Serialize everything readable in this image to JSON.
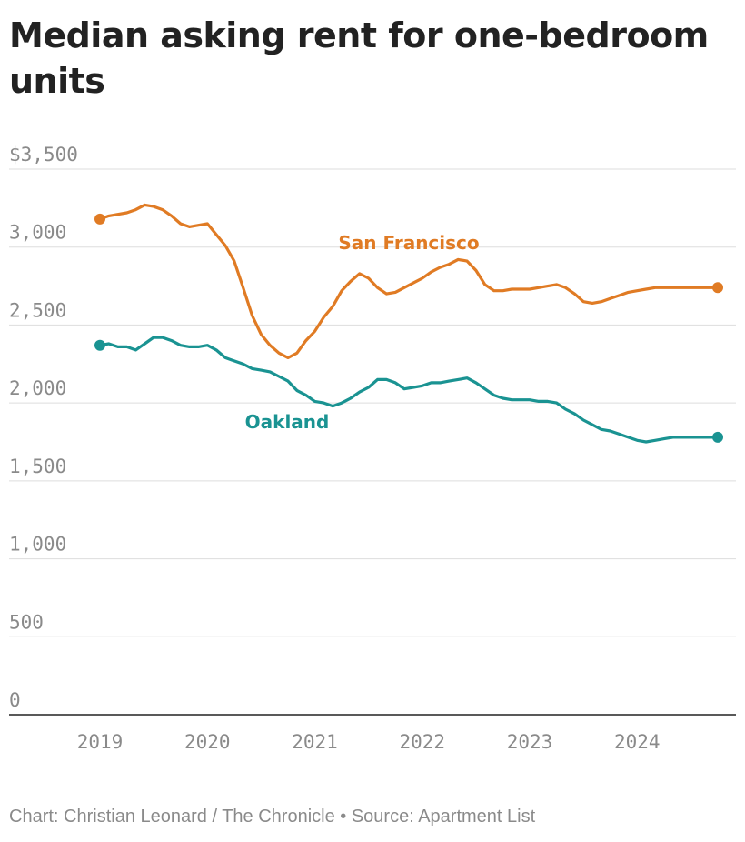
{
  "chart_data": {
    "type": "line",
    "title": "Median asking rent for one-bedroom units",
    "xlabel": "",
    "ylabel": "",
    "x_ticks": [
      "2019",
      "2020",
      "2021",
      "2022",
      "2023",
      "2024"
    ],
    "y_ticks": [
      "$3,500",
      "3,000",
      "2,500",
      "2,000",
      "1,500",
      "1,000",
      "500",
      "0"
    ],
    "y_tick_values": [
      3500,
      3000,
      2500,
      2000,
      1500,
      1000,
      500,
      0
    ],
    "x_tick_values": [
      2019,
      2020,
      2021,
      2022,
      2023,
      2024
    ],
    "xlim": [
      2018.75,
      2024.85
    ],
    "ylim": [
      0,
      3500
    ],
    "grid": true,
    "legend": "inline labels",
    "series": [
      {
        "name": "San Francisco",
        "color": "#e07b24",
        "x": [
          2019.0,
          2019.083,
          2019.167,
          2019.25,
          2019.333,
          2019.417,
          2019.5,
          2019.583,
          2019.667,
          2019.75,
          2019.833,
          2019.917,
          2020.0,
          2020.083,
          2020.167,
          2020.25,
          2020.333,
          2020.417,
          2020.5,
          2020.583,
          2020.667,
          2020.75,
          2020.833,
          2020.917,
          2021.0,
          2021.083,
          2021.167,
          2021.25,
          2021.333,
          2021.417,
          2021.5,
          2021.583,
          2021.667,
          2021.75,
          2021.833,
          2021.917,
          2022.0,
          2022.083,
          2022.167,
          2022.25,
          2022.333,
          2022.417,
          2022.5,
          2022.583,
          2022.667,
          2022.75,
          2022.833,
          2022.917,
          2023.0,
          2023.083,
          2023.167,
          2023.25,
          2023.333,
          2023.417,
          2023.5,
          2023.583,
          2023.667,
          2023.75,
          2023.833,
          2023.917,
          2024.0,
          2024.083,
          2024.167,
          2024.25,
          2024.333,
          2024.417,
          2024.5,
          2024.583,
          2024.667,
          2024.75
        ],
        "values": [
          3180,
          3200,
          3210,
          3220,
          3240,
          3270,
          3260,
          3240,
          3200,
          3150,
          3130,
          3140,
          3150,
          3080,
          3010,
          2910,
          2740,
          2560,
          2440,
          2370,
          2320,
          2290,
          2320,
          2400,
          2460,
          2550,
          2620,
          2720,
          2780,
          2830,
          2800,
          2740,
          2700,
          2710,
          2740,
          2770,
          2800,
          2840,
          2870,
          2890,
          2920,
          2910,
          2850,
          2760,
          2720,
          2720,
          2730,
          2730,
          2730,
          2740,
          2750,
          2760,
          2740,
          2700,
          2650,
          2640,
          2650,
          2670,
          2690,
          2710,
          2720,
          2730,
          2740,
          2740,
          2740,
          2740,
          2740,
          2740,
          2740,
          2740
        ]
      },
      {
        "name": "Oakland",
        "color": "#1a9392",
        "x": [
          2019.0,
          2019.083,
          2019.167,
          2019.25,
          2019.333,
          2019.417,
          2019.5,
          2019.583,
          2019.667,
          2019.75,
          2019.833,
          2019.917,
          2020.0,
          2020.083,
          2020.167,
          2020.25,
          2020.333,
          2020.417,
          2020.5,
          2020.583,
          2020.667,
          2020.75,
          2020.833,
          2020.917,
          2021.0,
          2021.083,
          2021.167,
          2021.25,
          2021.333,
          2021.417,
          2021.5,
          2021.583,
          2021.667,
          2021.75,
          2021.833,
          2021.917,
          2022.0,
          2022.083,
          2022.167,
          2022.25,
          2022.333,
          2022.417,
          2022.5,
          2022.583,
          2022.667,
          2022.75,
          2022.833,
          2022.917,
          2023.0,
          2023.083,
          2023.167,
          2023.25,
          2023.333,
          2023.417,
          2023.5,
          2023.583,
          2023.667,
          2023.75,
          2023.833,
          2023.917,
          2024.0,
          2024.083,
          2024.167,
          2024.25,
          2024.333,
          2024.417,
          2024.5,
          2024.583,
          2024.667,
          2024.75
        ],
        "values": [
          2370,
          2380,
          2360,
          2360,
          2340,
          2380,
          2420,
          2420,
          2400,
          2370,
          2360,
          2360,
          2370,
          2340,
          2290,
          2270,
          2250,
          2220,
          2210,
          2200,
          2170,
          2140,
          2080,
          2050,
          2010,
          2000,
          1980,
          2000,
          2030,
          2070,
          2100,
          2150,
          2150,
          2130,
          2090,
          2100,
          2110,
          2130,
          2130,
          2140,
          2150,
          2160,
          2130,
          2090,
          2050,
          2030,
          2020,
          2020,
          2020,
          2010,
          2010,
          2000,
          1960,
          1930,
          1890,
          1860,
          1830,
          1820,
          1800,
          1780,
          1760,
          1750,
          1760,
          1770,
          1780,
          1780,
          1780,
          1780,
          1780,
          1780
        ]
      }
    ]
  },
  "footer": {
    "credit": "Chart: Christian Leonard / The Chronicle",
    "separator": " • ",
    "source": "Source: Apartment List"
  }
}
